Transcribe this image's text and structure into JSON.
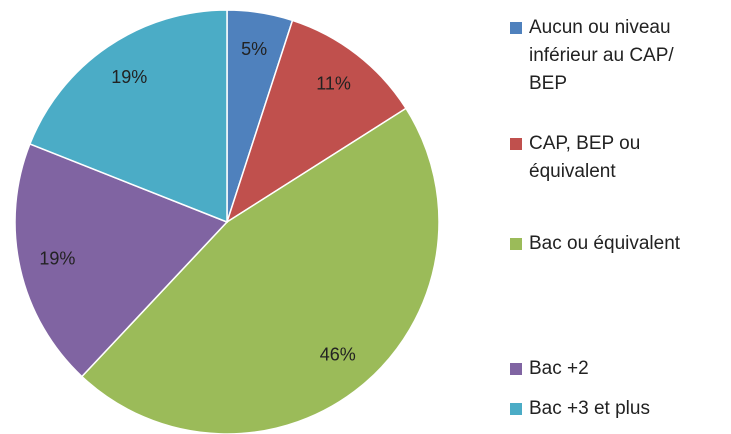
{
  "chart_data": {
    "type": "pie",
    "categories": [
      "Aucun ou niveau inférieur au CAP/ BEP",
      "CAP, BEP ou équivalent",
      "Bac ou équivalent",
      "Bac +2",
      "Bac +3 et plus"
    ],
    "values": [
      5,
      11,
      46,
      19,
      19
    ],
    "value_labels": [
      "5%",
      "11%",
      "46%",
      "19%",
      "19%"
    ],
    "colors": [
      "#4f81bd",
      "#c0504d",
      "#9bbb59",
      "#8064a2",
      "#4bacc6"
    ],
    "legend": "right"
  }
}
